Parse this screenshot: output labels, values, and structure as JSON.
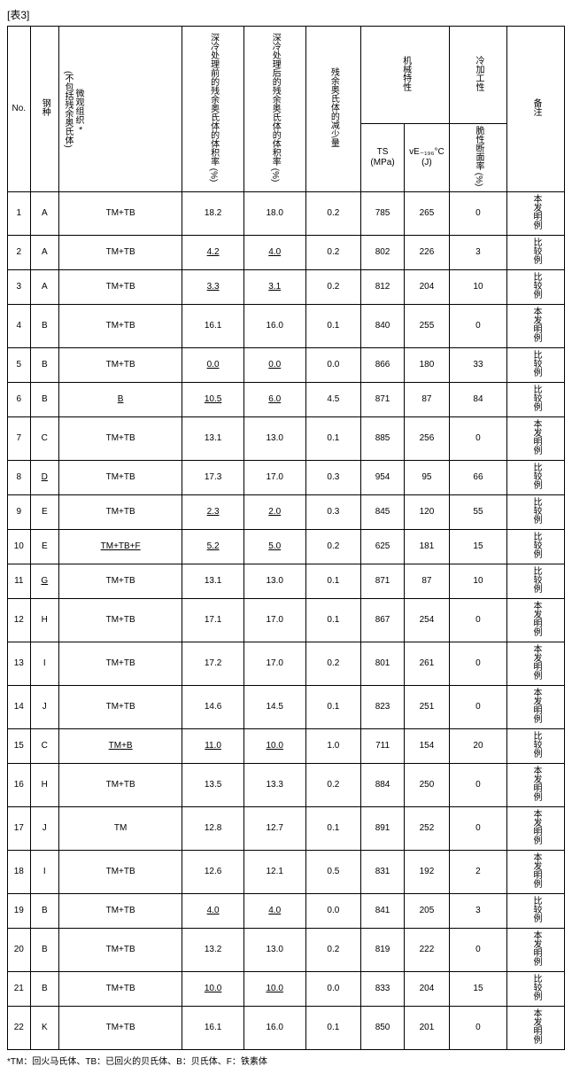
{
  "table_label": "[表3]",
  "headers": {
    "no": "No.",
    "steel": "钢种",
    "micro_line1": "微观组织 *",
    "micro_line2": "(不包括残余奥氏体)",
    "vol_before": "深冷处理前的残余奥氏体的体积率 (%)",
    "vol_after": "深冷处理后的残余奥氏体的体积率 (%)",
    "reduction": "残余奥氏体的减少量",
    "mech_group": "机械特性",
    "ts": "TS (MPa)",
    "ve": "vE₋₁₉₆°C (J)",
    "cold_group": "冷加工性",
    "brittle": "脆性断面率 (%)",
    "note": "备注"
  },
  "rows": [
    {
      "no": "1",
      "steel": "A",
      "micro": "TM+TB",
      "before": "18.2",
      "after": "18.0",
      "red": "0.2",
      "ts": "785",
      "ve": "265",
      "cold": "0",
      "note": "本发明例",
      "u": {}
    },
    {
      "no": "2",
      "steel": "A",
      "micro": "TM+TB",
      "before": "4.2",
      "after": "4.0",
      "red": "0.2",
      "ts": "802",
      "ve": "226",
      "cold": "3",
      "note": "比较例",
      "u": {
        "before": true,
        "after": true
      }
    },
    {
      "no": "3",
      "steel": "A",
      "micro": "TM+TB",
      "before": "3.3",
      "after": "3.1",
      "red": "0.2",
      "ts": "812",
      "ve": "204",
      "cold": "10",
      "note": "比较例",
      "u": {
        "before": true,
        "after": true
      }
    },
    {
      "no": "4",
      "steel": "B",
      "micro": "TM+TB",
      "before": "16.1",
      "after": "16.0",
      "red": "0.1",
      "ts": "840",
      "ve": "255",
      "cold": "0",
      "note": "本发明例",
      "u": {}
    },
    {
      "no": "5",
      "steel": "B",
      "micro": "TM+TB",
      "before": "0.0",
      "after": "0.0",
      "red": "0.0",
      "ts": "866",
      "ve": "180",
      "cold": "33",
      "note": "比较例",
      "u": {
        "before": true,
        "after": true
      }
    },
    {
      "no": "6",
      "steel": "B",
      "micro": "B",
      "before": "10.5",
      "after": "6.0",
      "red": "4.5",
      "ts": "871",
      "ve": "87",
      "cold": "84",
      "note": "比较例",
      "u": {
        "micro": true,
        "before": true,
        "after": true
      }
    },
    {
      "no": "7",
      "steel": "C",
      "micro": "TM+TB",
      "before": "13.1",
      "after": "13.0",
      "red": "0.1",
      "ts": "885",
      "ve": "256",
      "cold": "0",
      "note": "本发明例",
      "u": {}
    },
    {
      "no": "8",
      "steel": "D",
      "micro": "TM+TB",
      "before": "17.3",
      "after": "17.0",
      "red": "0.3",
      "ts": "954",
      "ve": "95",
      "cold": "66",
      "note": "比较例",
      "u": {
        "steel": true
      }
    },
    {
      "no": "9",
      "steel": "E",
      "micro": "TM+TB",
      "before": "2.3",
      "after": "2.0",
      "red": "0.3",
      "ts": "845",
      "ve": "120",
      "cold": "55",
      "note": "比较例",
      "u": {
        "before": true,
        "after": true
      }
    },
    {
      "no": "10",
      "steel": "E",
      "micro": "TM+TB+F",
      "before": "5.2",
      "after": "5.0",
      "red": "0.2",
      "ts": "625",
      "ve": "181",
      "cold": "15",
      "note": "比较例",
      "u": {
        "micro": true,
        "before": true,
        "after": true
      }
    },
    {
      "no": "11",
      "steel": "G",
      "micro": "TM+TB",
      "before": "13.1",
      "after": "13.0",
      "red": "0.1",
      "ts": "871",
      "ve": "87",
      "cold": "10",
      "note": "比较例",
      "u": {
        "steel": true
      }
    },
    {
      "no": "12",
      "steel": "H",
      "micro": "TM+TB",
      "before": "17.1",
      "after": "17.0",
      "red": "0.1",
      "ts": "867",
      "ve": "254",
      "cold": "0",
      "note": "本发明例",
      "u": {}
    },
    {
      "no": "13",
      "steel": "I",
      "micro": "TM+TB",
      "before": "17.2",
      "after": "17.0",
      "red": "0.2",
      "ts": "801",
      "ve": "261",
      "cold": "0",
      "note": "本发明例",
      "u": {}
    },
    {
      "no": "14",
      "steel": "J",
      "micro": "TM+TB",
      "before": "14.6",
      "after": "14.5",
      "red": "0.1",
      "ts": "823",
      "ve": "251",
      "cold": "0",
      "note": "本发明例",
      "u": {}
    },
    {
      "no": "15",
      "steel": "C",
      "micro": "TM+B",
      "before": "11.0",
      "after": "10.0",
      "red": "1.0",
      "ts": "711",
      "ve": "154",
      "cold": "20",
      "note": "比较例",
      "u": {
        "micro": true,
        "before": true,
        "after": true
      }
    },
    {
      "no": "16",
      "steel": "H",
      "micro": "TM+TB",
      "before": "13.5",
      "after": "13.3",
      "red": "0.2",
      "ts": "884",
      "ve": "250",
      "cold": "0",
      "note": "本发明例",
      "u": {}
    },
    {
      "no": "17",
      "steel": "J",
      "micro": "TM",
      "before": "12.8",
      "after": "12.7",
      "red": "0.1",
      "ts": "891",
      "ve": "252",
      "cold": "0",
      "note": "本发明例",
      "u": {}
    },
    {
      "no": "18",
      "steel": "I",
      "micro": "TM+TB",
      "before": "12.6",
      "after": "12.1",
      "red": "0.5",
      "ts": "831",
      "ve": "192",
      "cold": "2",
      "note": "本发明例",
      "u": {}
    },
    {
      "no": "19",
      "steel": "B",
      "micro": "TM+TB",
      "before": "4.0",
      "after": "4.0",
      "red": "0.0",
      "ts": "841",
      "ve": "205",
      "cold": "3",
      "note": "比较例",
      "u": {
        "before": true,
        "after": true
      }
    },
    {
      "no": "20",
      "steel": "B",
      "micro": "TM+TB",
      "before": "13.2",
      "after": "13.0",
      "red": "0.2",
      "ts": "819",
      "ve": "222",
      "cold": "0",
      "note": "本发明例",
      "u": {}
    },
    {
      "no": "21",
      "steel": "B",
      "micro": "TM+TB",
      "before": "10.0",
      "after": "10.0",
      "red": "0.0",
      "ts": "833",
      "ve": "204",
      "cold": "15",
      "note": "比较例",
      "u": {
        "before": true,
        "after": true
      }
    },
    {
      "no": "22",
      "steel": "K",
      "micro": "TM+TB",
      "before": "16.1",
      "after": "16.0",
      "red": "0.1",
      "ts": "850",
      "ve": "201",
      "cold": "0",
      "note": "本发明例",
      "u": {}
    }
  ],
  "footnote": "*TM：回火马氏体、TB：已回火的贝氏体、B：贝氏体、F：铁素体"
}
